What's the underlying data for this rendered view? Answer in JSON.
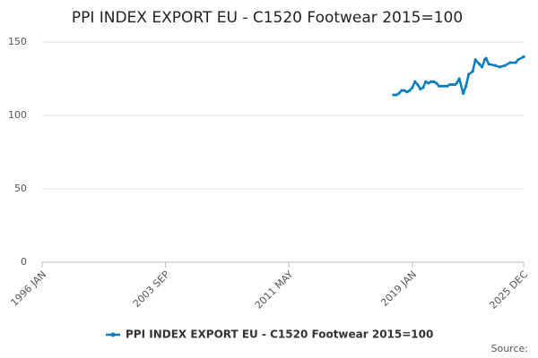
{
  "chart_data": {
    "type": "line",
    "title": "PPI INDEX EXPORT EU - C1520 Footwear 2015=100",
    "source_label": "Source:",
    "x": [
      2017.833,
      2018,
      2018.167,
      2018.333,
      2018.5,
      2018.667,
      2018.833,
      2019,
      2019.167,
      2019.333,
      2019.5,
      2019.667,
      2019.833,
      2020,
      2020.167,
      2020.333,
      2020.5,
      2020.667,
      2020.833,
      2021,
      2021.167,
      2021.333,
      2021.5,
      2021.667,
      2021.75,
      2021.917,
      2022.167,
      2022.333,
      2022.5,
      2022.75,
      2022.917,
      2023.167,
      2023.333,
      2023.5,
      2023.583,
      2023.75,
      2024.167,
      2024.417,
      2024.75,
      2025.083,
      2025.417,
      2025.583,
      2025.917
    ],
    "series": [
      {
        "name": "PPI INDEX EXPORT EU - C1520 Footwear 2015=100",
        "color": "#0a7dbf",
        "values": [
          114,
          114,
          115,
          117,
          117,
          116,
          117,
          119,
          123,
          121,
          118,
          119,
          123,
          122,
          123,
          123,
          122,
          120,
          120,
          120,
          120,
          121,
          121,
          121,
          122,
          125,
          115,
          120,
          128,
          130,
          138,
          135,
          133,
          138,
          139,
          135,
          134,
          133,
          134,
          136,
          136,
          138,
          140
        ]
      }
    ],
    "xlim": [
      1996,
      2025.917
    ],
    "xticks": [
      {
        "value": 1996,
        "label": "1996 JAN"
      },
      {
        "value": 2003.667,
        "label": "2003 SEP"
      },
      {
        "value": 2011.333,
        "label": "2011 MAY"
      },
      {
        "value": 2019,
        "label": "2019 JAN"
      },
      {
        "value": 2025.917,
        "label": "2025 DEC"
      }
    ],
    "ylim": [
      0,
      150
    ],
    "yticks": [
      0,
      50,
      100,
      150
    ],
    "grid": true
  }
}
